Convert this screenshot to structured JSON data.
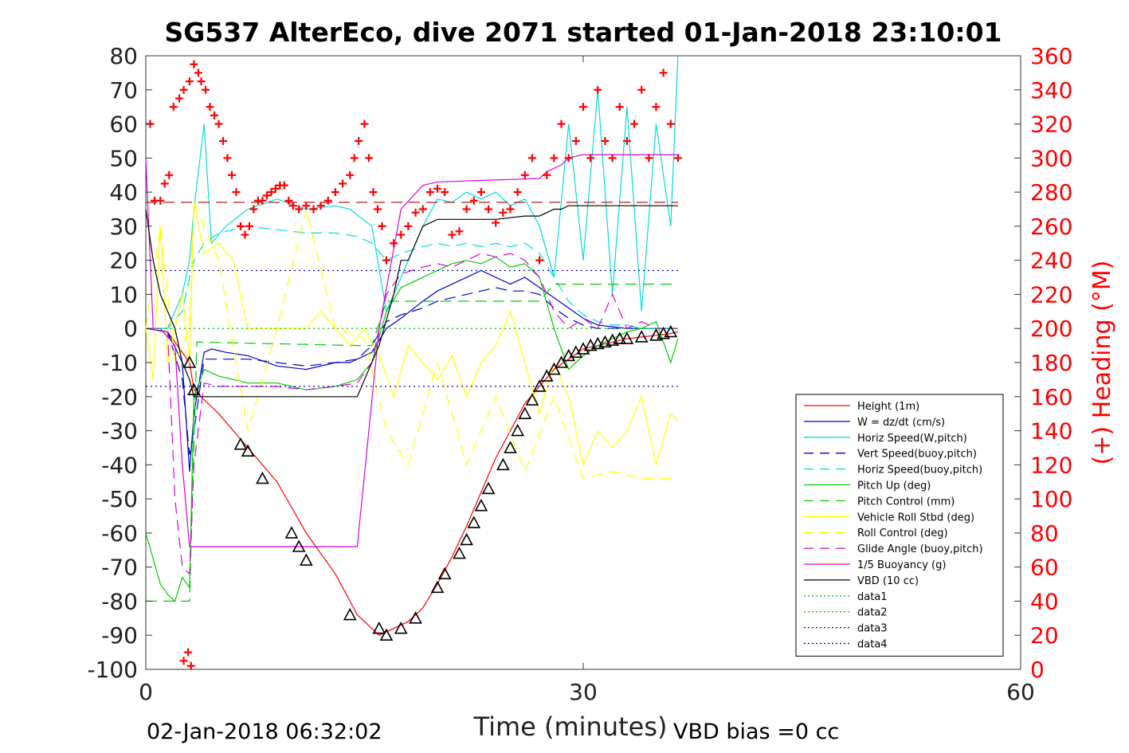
{
  "chart_data": {
    "type": "line",
    "title": "SG537 AlterEco, dive 2071 started 01-Jan-2018 23:10:01",
    "xlabel": "Time (minutes)",
    "ylabel_right": "(+) Heading (°M)",
    "xlim": [
      0,
      60
    ],
    "ylim": [
      -100,
      80
    ],
    "ylim_right": [
      0,
      360
    ],
    "x_ticks": [
      "0",
      "30",
      "60"
    ],
    "y_ticks": [
      "80",
      "70",
      "60",
      "50",
      "40",
      "30",
      "20",
      "10",
      "0",
      "-10",
      "-20",
      "-30",
      "-40",
      "-50",
      "-60",
      "-70",
      "-80",
      "-90",
      "-100"
    ],
    "y_right_ticks": [
      "360",
      "340",
      "320",
      "300",
      "280",
      "260",
      "240",
      "220",
      "200",
      "180",
      "160",
      "140",
      "120",
      "100",
      "80",
      "60",
      "40",
      "20",
      "0"
    ],
    "grid": false,
    "legend_position": "lower-right",
    "footer_left": "02-Jan-2018 06:32:02",
    "footer_right": "VBD bias =0 cc",
    "series": [
      {
        "name": "Height (1m)",
        "color": "#ff0000",
        "style": "solid",
        "x": [
          0.0,
          1.5,
          3.0,
          3.3,
          5.0,
          7.0,
          9.0,
          11.0,
          13.0,
          14.5,
          15.5,
          16.0,
          16.5,
          17.0,
          18.0,
          19.0,
          20.0,
          21.0,
          22.0,
          23.0,
          24.0,
          25.0,
          26.0,
          27.0,
          28.0,
          29.0,
          30.0,
          31.0,
          32.0,
          33.0,
          34.0,
          35.0,
          36.0,
          36.5
        ],
        "y": [
          0,
          -1,
          -10,
          -18,
          -25,
          -35,
          -45,
          -60,
          -72,
          -84,
          -88,
          -90,
          -89,
          -88,
          -86,
          -82,
          -75,
          -67,
          -58,
          -48,
          -38,
          -30,
          -22,
          -17,
          -12,
          -9,
          -6,
          -5,
          -4,
          -3,
          -2.5,
          -2,
          -1.5,
          -1
        ]
      },
      {
        "name": "W = dz/dt (cm/s)",
        "color": "#0000cc",
        "style": "solid",
        "x": [
          0,
          1.5,
          2.5,
          3.0,
          3.3,
          4.0,
          4.5,
          5.5,
          7.0,
          9.0,
          11.0,
          13.0,
          14.0,
          15.5,
          16.5,
          17.5,
          19.0,
          20.0,
          21.0,
          22.0,
          23.0,
          24.0,
          25.0,
          26.0,
          27.0,
          28.0,
          29.0,
          30.0,
          31.0,
          32.0,
          33.0,
          34.0,
          35.0,
          36.5
        ],
        "y": [
          0,
          -1,
          -10,
          -42,
          -25,
          -7,
          -6,
          -7,
          -8,
          -11,
          -12,
          -10,
          -10,
          -7,
          0,
          3,
          8,
          11,
          13,
          15,
          17,
          15,
          13,
          15,
          12,
          9,
          6,
          3,
          1,
          0.5,
          0,
          0,
          0,
          0
        ]
      },
      {
        "name": "Horiz Speed(W,pitch)",
        "color": "#00dddd",
        "style": "solid",
        "x": [
          0,
          1.5,
          2.5,
          3.0,
          3.3,
          4.0,
          4.5,
          5.5,
          7.0,
          9.0,
          11.0,
          13.0,
          14.0,
          15.5,
          16.5,
          17.5,
          19.0,
          20.0,
          21.0,
          22.0,
          23.0,
          24.0,
          25.0,
          26.0,
          27.0,
          28.0,
          29.0,
          30.0,
          31.0,
          32.0,
          33.0,
          34.0,
          35.0,
          36.0,
          36.5
        ],
        "y": [
          0,
          0,
          10,
          20,
          35,
          60,
          25,
          30,
          35,
          38,
          35,
          36,
          35,
          30,
          5,
          15,
          30,
          38,
          37,
          40,
          38,
          40,
          36,
          38,
          30,
          15,
          60,
          20,
          70,
          10,
          65,
          5,
          60,
          30,
          80
        ]
      },
      {
        "name": "Vert Speed(buoy,pitch)",
        "color": "#0000cc",
        "style": "dashed",
        "x": [
          0,
          1.5,
          2.5,
          3.0,
          3.3,
          4.0,
          5.0,
          7.0,
          9.0,
          11.0,
          13.0,
          14.5,
          15.5,
          16.5,
          17.5,
          19.0,
          20.0,
          21.0,
          22.0,
          23.0,
          24.0,
          25.0,
          26.0,
          27.0,
          28.0,
          29.0,
          30.0,
          31.0,
          32.0,
          33.0,
          34.0,
          35.0,
          36.5
        ],
        "y": [
          0,
          -1,
          -15,
          -37,
          -30,
          -9,
          -9,
          -9,
          -10,
          -11,
          -10,
          -9,
          -5,
          2,
          4,
          6,
          8,
          9,
          10,
          11,
          12,
          11,
          11,
          10,
          6,
          3,
          1,
          0,
          0,
          0,
          0,
          0,
          0
        ]
      },
      {
        "name": "Horiz Speed(buoy,pitch)",
        "color": "#00dddd",
        "style": "dashed",
        "x": [
          0,
          1.5,
          2.5,
          3.0,
          3.3,
          4.0,
          5.0,
          7.0,
          9.0,
          11.0,
          13.0,
          14.5,
          15.5,
          16.5,
          17.5,
          19.0,
          20.0,
          21.0,
          22.0,
          23.0,
          24.0,
          25.0,
          26.0,
          27.0,
          28.0,
          29.0,
          30.0,
          31.0,
          32.0,
          33.0,
          34.0,
          35.0,
          36.5
        ],
        "y": [
          0,
          0,
          5,
          15,
          20,
          25,
          28,
          30,
          29,
          28,
          28,
          27,
          25,
          20,
          22,
          24,
          25,
          24,
          25,
          24,
          25,
          24,
          25,
          22,
          15,
          8,
          4,
          2,
          1,
          1,
          0,
          0,
          0
        ]
      },
      {
        "name": "Pitch Up (deg)",
        "color": "#00cc00",
        "style": "solid",
        "x": [
          0,
          1.0,
          1.5,
          2.0,
          2.5,
          3.0,
          3.3,
          4.0,
          5.0,
          7.0,
          9.0,
          11.0,
          13.0,
          14.5,
          15.5,
          16.5,
          17.5,
          19.0,
          20.0,
          21.0,
          22.0,
          23.0,
          24.0,
          25.0,
          26.0,
          27.0,
          28.0,
          29.0,
          30.0,
          31.0,
          32.0,
          33.0,
          34.0,
          35.0,
          36.0,
          36.5
        ],
        "y": [
          -60,
          -75,
          -78,
          -80,
          -73,
          -76,
          -20,
          -12,
          -14,
          -16,
          -16,
          -18,
          -17,
          -15,
          -10,
          5,
          12,
          15,
          17,
          19,
          20,
          19,
          21,
          18,
          19,
          15,
          0,
          -12,
          -8,
          -5,
          -3,
          -1,
          0,
          2,
          -10,
          -3
        ]
      },
      {
        "name": "Pitch Control (mm)",
        "color": "#00cc00",
        "style": "dashed",
        "x": [
          0,
          0.5,
          3.0,
          3.5,
          14.5,
          15.5,
          16.5,
          27.0,
          28.0,
          33.0,
          36.5
        ],
        "y": [
          -80,
          -80,
          -80,
          -4,
          -5,
          -5,
          8,
          8,
          13,
          13,
          13
        ]
      },
      {
        "name": "Vehicle Roll Stbd (deg)",
        "color": "#ffff00",
        "style": "solid",
        "x": [
          0,
          0.5,
          1.0,
          1.5,
          2.0,
          2.5,
          3.0,
          3.3,
          4.0,
          5.0,
          6.0,
          7.0,
          8.0,
          9.0,
          10.0,
          11.0,
          12.0,
          13.0,
          14.0,
          15.0,
          16.0,
          17.0,
          18.0,
          19.0,
          20.0,
          21.0,
          22.0,
          23.0,
          24.0,
          25.0,
          26.0,
          27.0,
          28.0,
          29.0,
          30.0,
          31.0,
          32.0,
          33.0,
          34.0,
          35.0,
          36.0,
          36.5
        ],
        "y": [
          0,
          -15,
          30,
          -10,
          0,
          10,
          -10,
          37,
          22,
          25,
          20,
          0,
          0,
          0,
          0,
          0,
          5,
          0,
          -5,
          0,
          -8,
          -20,
          -5,
          -10,
          -15,
          -8,
          -20,
          -10,
          -5,
          5,
          -10,
          -25,
          -10,
          -20,
          -40,
          -30,
          -35,
          -30,
          -20,
          -40,
          -25,
          -27
        ]
      },
      {
        "name": "Roll Control (deg)",
        "color": "#ffff00",
        "style": "dashed",
        "x": [
          0,
          1.0,
          2.0,
          3.0,
          3.3,
          5.0,
          7.0,
          9.0,
          11.0,
          13.0,
          15.0,
          16.5,
          18.0,
          20.0,
          22.0,
          24.0,
          26.0,
          28.0,
          30.0,
          32.0,
          34.0,
          36.5
        ],
        "y": [
          0,
          30,
          -10,
          0,
          37,
          20,
          -30,
          0,
          35,
          0,
          -3,
          -30,
          -40,
          -10,
          -40,
          -20,
          -42,
          -20,
          -44,
          -42,
          -44,
          -44
        ]
      },
      {
        "name": "Glide Angle (buoy,pitch)",
        "color": "#dd00dd",
        "style": "dashed",
        "x": [
          0,
          1.5,
          2.0,
          2.5,
          3.0,
          3.3,
          4.0,
          5.0,
          7.0,
          9.0,
          11.0,
          13.0,
          14.5,
          15.5,
          16.5,
          17.5,
          19.0,
          20.0,
          21.0,
          22.0,
          23.0,
          24.0,
          25.0,
          26.0,
          27.0,
          28.0,
          29.0,
          30.0,
          31.0,
          32.0,
          33.0,
          34.0,
          35.0,
          36.5
        ],
        "y": [
          0,
          -1,
          -50,
          -70,
          -72,
          -40,
          -16,
          -17,
          -17,
          -17,
          -18,
          -17,
          -16,
          -10,
          10,
          16,
          18,
          19,
          18,
          20,
          22,
          21,
          22,
          20,
          15,
          5,
          0,
          3,
          0,
          10,
          0,
          2,
          0,
          0
        ]
      },
      {
        "name": "1/5 Buoyancy (g)",
        "color": "#dd00dd",
        "style": "solid",
        "x": [
          0,
          0.5,
          1.0,
          2.0,
          2.5,
          3.0,
          3.3,
          4.0,
          14.0,
          14.5,
          16.0,
          17.5,
          19.0,
          20.0,
          27.0,
          27.5,
          28.5,
          29.0,
          30.0,
          36.5
        ],
        "y": [
          50,
          0,
          0,
          -5,
          -40,
          -64,
          -64,
          -64,
          -64,
          -64,
          0,
          35,
          42,
          43,
          44,
          46,
          48,
          50,
          51,
          51
        ]
      },
      {
        "name": "VBD (10 cc)",
        "color": "#000000",
        "style": "solid",
        "x": [
          0,
          0.5,
          1.0,
          1.5,
          2.0,
          2.5,
          3.0,
          3.3,
          4.0,
          14.0,
          14.5,
          16.0,
          17.0,
          17.5,
          18.0,
          19.0,
          20.0,
          22.0,
          24.0,
          26.0,
          27.0,
          27.5,
          28.0,
          28.5,
          29.0,
          36.5
        ],
        "y": [
          35,
          20,
          10,
          5,
          0,
          -10,
          -15,
          -20,
          -20,
          -20,
          -20,
          -5,
          10,
          20,
          20,
          30,
          32,
          32,
          32,
          33,
          33,
          34,
          35,
          35,
          36,
          36
        ]
      },
      {
        "name": "data1",
        "color": "#00cc00",
        "style": "dotted",
        "x": [
          0,
          36.5
        ],
        "y": [
          0,
          0
        ]
      },
      {
        "name": "data2",
        "color": "#00cc00",
        "style": "dotted",
        "x": [
          0,
          36.5
        ],
        "y": [
          0,
          0
        ]
      },
      {
        "name": "data3",
        "color": "#0000cc",
        "style": "dotted",
        "x": [
          0,
          36.5
        ],
        "y": [
          17,
          17
        ]
      },
      {
        "name": "data4",
        "color": "#0000cc",
        "style": "dotted",
        "x": [
          0,
          36.5
        ],
        "y": [
          -17,
          -17
        ]
      }
    ],
    "reference_lines": [
      {
        "color": "#aa0000",
        "style": "dashed",
        "y": 37
      }
    ],
    "heading_points": {
      "color": "#ff0000",
      "marker": "+",
      "x": [
        0.3,
        0.6,
        1.0,
        1.3,
        1.6,
        1.9,
        2.3,
        2.6,
        3.0,
        3.3,
        3.6,
        3.8,
        4.1,
        4.4,
        4.7,
        5.0,
        5.3,
        5.6,
        5.9,
        6.2,
        6.5,
        6.8,
        7.1,
        7.4,
        7.7,
        8.0,
        8.3,
        8.6,
        8.9,
        9.2,
        9.5,
        9.8,
        10.1,
        10.5,
        11.0,
        11.5,
        12.0,
        12.5,
        13.0,
        13.5,
        14.0,
        14.3,
        14.6,
        15.0,
        15.3,
        15.6,
        15.9,
        16.2,
        16.5,
        17.0,
        17.5,
        18.0,
        18.5,
        19.0,
        19.5,
        20.0,
        20.5,
        21.0,
        21.5,
        22.0,
        22.5,
        23.0,
        23.5,
        24.0,
        24.5,
        25.0,
        25.5,
        26.0,
        26.5,
        27.0,
        27.5,
        28.0,
        28.5,
        29.0,
        29.5,
        30.0,
        30.5,
        31.0,
        31.5,
        32.0,
        32.5,
        33.0,
        33.5,
        34.0,
        34.5,
        35.0,
        35.5,
        36.0,
        36.5,
        2.6,
        2.9,
        3.1
      ],
      "y": [
        320,
        275,
        275,
        285,
        290,
        330,
        335,
        340,
        345,
        355,
        350,
        345,
        340,
        330,
        325,
        320,
        310,
        300,
        290,
        280,
        260,
        255,
        260,
        270,
        275,
        275,
        278,
        280,
        282,
        284,
        284,
        275,
        272,
        270,
        272,
        270,
        272,
        275,
        280,
        285,
        290,
        300,
        310,
        320,
        300,
        280,
        270,
        260,
        240,
        250,
        255,
        260,
        268,
        270,
        280,
        282,
        280,
        255,
        257,
        270,
        275,
        280,
        270,
        262,
        268,
        270,
        280,
        290,
        300,
        240,
        290,
        300,
        320,
        300,
        310,
        330,
        300,
        340,
        310,
        300,
        330,
        310,
        320,
        340,
        300,
        330,
        350,
        320,
        300,
        5,
        10,
        2
      ]
    },
    "sample_markers": {
      "color": "#000000",
      "marker": "triangle",
      "x": [
        3.0,
        3.3,
        6.5,
        7.0,
        8.0,
        10.0,
        10.5,
        11.0,
        14.0,
        16.0,
        16.5,
        17.5,
        18.5,
        20.0,
        20.5,
        21.5,
        22.0,
        22.5,
        23.0,
        23.5,
        24.5,
        25.0,
        25.5,
        26.0,
        26.5,
        27.0,
        27.5,
        28.0,
        28.5,
        29.0,
        29.5,
        30.0,
        30.5,
        31.0,
        31.5,
        32.0,
        32.5,
        33.0,
        34.0,
        35.0,
        35.5,
        36.0
      ],
      "y": [
        -10,
        -18,
        -34,
        -36,
        -44,
        -60,
        -64,
        -68,
        -84,
        -88,
        -90,
        -88,
        -85,
        -76,
        -72,
        -66,
        -62,
        -57,
        -52,
        -47,
        -40,
        -35,
        -30,
        -25,
        -21,
        -17,
        -14,
        -12,
        -10,
        -8,
        -7,
        -6,
        -5,
        -4.5,
        -4,
        -3.5,
        -3,
        -3,
        -2.5,
        -2,
        -1.5,
        -1
      ]
    }
  }
}
